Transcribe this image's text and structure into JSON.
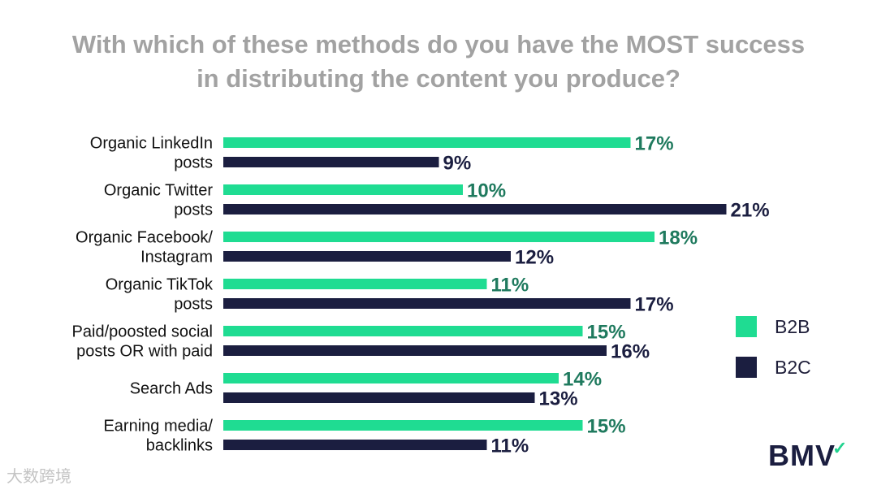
{
  "title_line1": "With which of these methods do you have the MOST success",
  "title_line2": "in distributing the content you produce?",
  "colors": {
    "b2b": "#1fdc92",
    "b2c": "#1b1e40",
    "label_b2b": "#1f7a5e",
    "label_b2c": "#1b1e40",
    "title": "#a2a2a2"
  },
  "legend": {
    "b2b": "B2B",
    "b2c": "B2C"
  },
  "logo": "BMV",
  "watermark": "大数跨境",
  "chart_data": {
    "type": "bar",
    "orientation": "horizontal",
    "title": "With which of these methods do you have the MOST success in distributing the content you produce?",
    "categories": [
      [
        "Organic LinkedIn",
        "posts"
      ],
      [
        "Organic Twitter",
        "posts"
      ],
      [
        "Organic Facebook/",
        "Instagram"
      ],
      [
        "Organic TikTok",
        "posts"
      ],
      [
        "Paid/poosted social",
        "posts OR with paid"
      ],
      [
        "Search Ads"
      ],
      [
        "Earning media/",
        "backlinks"
      ]
    ],
    "series": [
      {
        "name": "B2B",
        "values": [
          17,
          10,
          18,
          11,
          15,
          14,
          15
        ]
      },
      {
        "name": "B2C",
        "values": [
          9,
          21,
          12,
          17,
          16,
          13,
          11
        ]
      }
    ],
    "unit": "%",
    "xlim": [
      0,
      21
    ],
    "grid": false,
    "legend_position": "right"
  }
}
